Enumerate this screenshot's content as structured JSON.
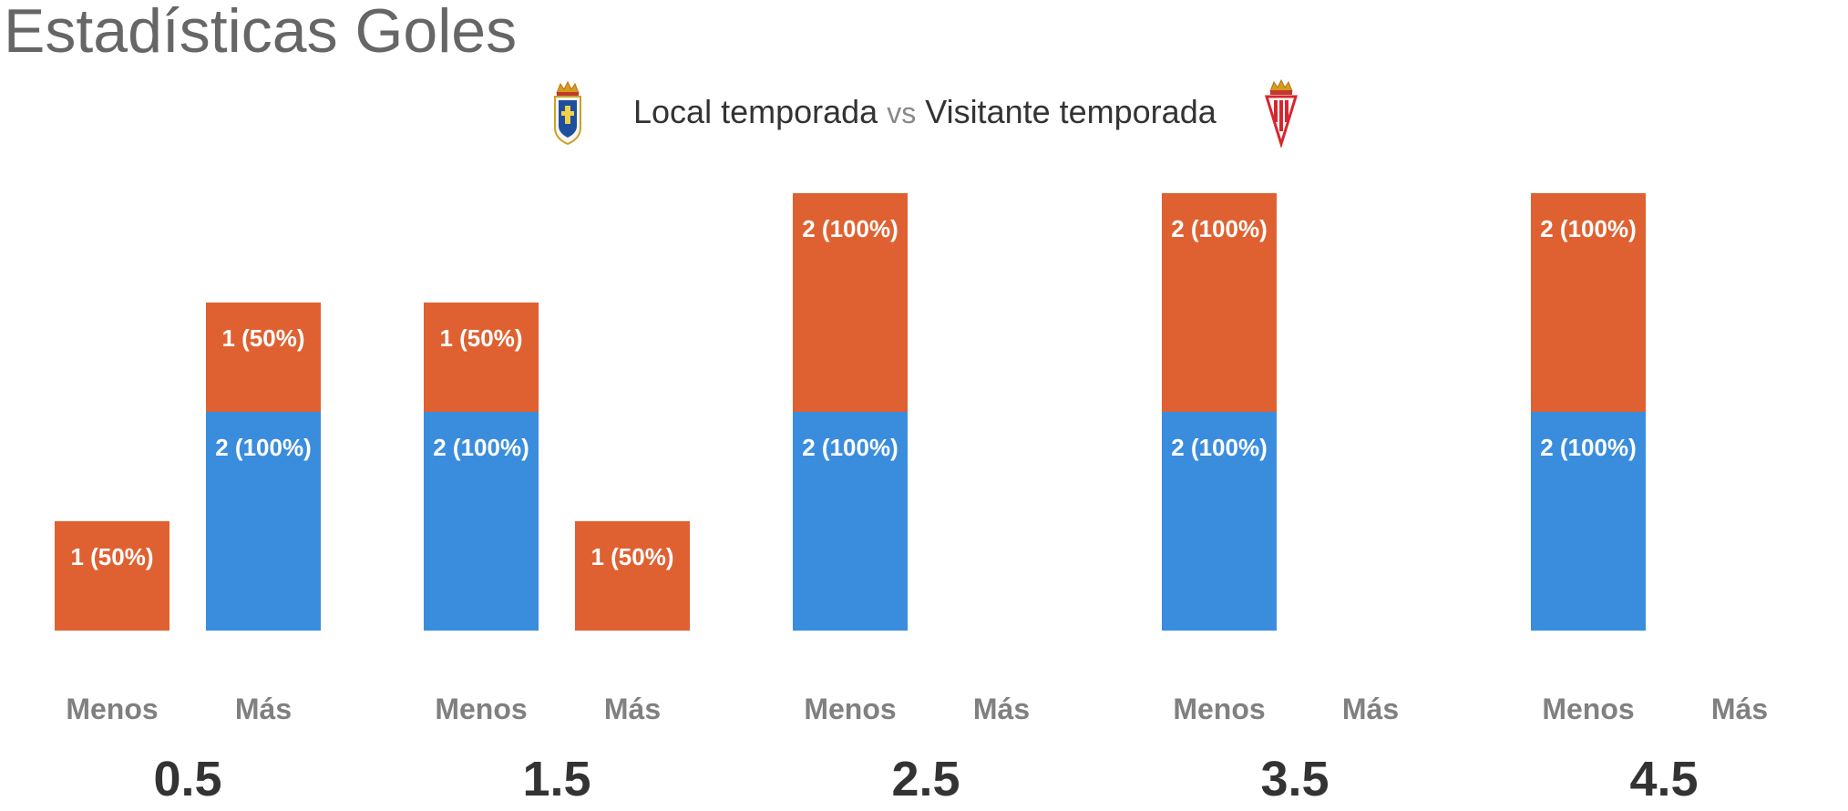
{
  "header": {
    "title": "Estadísticas Goles"
  },
  "legend": {
    "local": "Local temporada",
    "vs": "vs",
    "visitor": "Visitante temporada",
    "local_crest": "real-oviedo-crest-icon",
    "visitor_crest": "sporting-gijon-crest-icon"
  },
  "colors": {
    "local": "#3a8ddd",
    "visitor": "#df6131"
  },
  "chart_data": {
    "type": "bar",
    "stacked": true,
    "groups": [
      "0.5",
      "1.5",
      "2.5",
      "3.5",
      "4.5"
    ],
    "categories": [
      "Menos",
      "Más"
    ],
    "ylim": [
      0,
      4
    ],
    "series": [
      {
        "key": "local",
        "values": [
          [
            0,
            2
          ],
          [
            2,
            0
          ],
          [
            2,
            0
          ],
          [
            2,
            0
          ],
          [
            2,
            0
          ]
        ],
        "labels": [
          [
            "",
            "2 (100%)"
          ],
          [
            "2 (100%)",
            ""
          ],
          [
            "2 (100%)",
            ""
          ],
          [
            "2 (100%)",
            ""
          ],
          [
            "2 (100%)",
            ""
          ]
        ]
      },
      {
        "key": "visitor",
        "values": [
          [
            1,
            1
          ],
          [
            1,
            1
          ],
          [
            2,
            0
          ],
          [
            2,
            0
          ],
          [
            2,
            0
          ]
        ],
        "labels": [
          [
            "1 (50%)",
            "1 (50%)"
          ],
          [
            "1 (50%)",
            "1 (50%)"
          ],
          [
            "2 (100%)",
            ""
          ],
          [
            "2 (100%)",
            ""
          ],
          [
            "2 (100%)",
            ""
          ]
        ]
      }
    ]
  }
}
